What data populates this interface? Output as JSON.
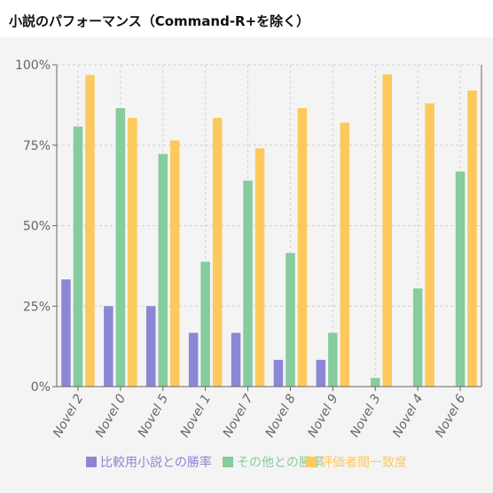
{
  "title": "小説のパフォーマンス（Command-R+を除く）",
  "chart_data": {
    "type": "bar",
    "categories": [
      "Novel 2",
      "Novel 0",
      "Novel 5",
      "Novel 1",
      "Novel 7",
      "Novel 8",
      "Novel 9",
      "Novel 3",
      "Novel 4",
      "Novel 6"
    ],
    "series": [
      {
        "name": "比較用小説との勝率",
        "color": "#8c86d6",
        "values": [
          33.3,
          25.0,
          25.0,
          16.7,
          16.7,
          8.3,
          8.3,
          0,
          0,
          0
        ]
      },
      {
        "name": "その他との勝率",
        "color": "#86cc9c",
        "values": [
          80.8,
          86.5,
          72.3,
          38.8,
          64.0,
          41.5,
          16.7,
          2.7,
          30.5,
          66.8
        ]
      },
      {
        "name": "評価者間一致度",
        "color": "#fdc95c",
        "values": [
          96.8,
          83.5,
          76.5,
          83.5,
          74.0,
          86.5,
          82.0,
          97.0,
          88.0,
          92.0
        ]
      }
    ],
    "yticks": [
      "0%",
      "25%",
      "50%",
      "75%",
      "100%"
    ],
    "ylim": [
      0,
      100
    ],
    "xlabel": "",
    "ylabel": "",
    "grid": true,
    "legend": "bottom"
  }
}
